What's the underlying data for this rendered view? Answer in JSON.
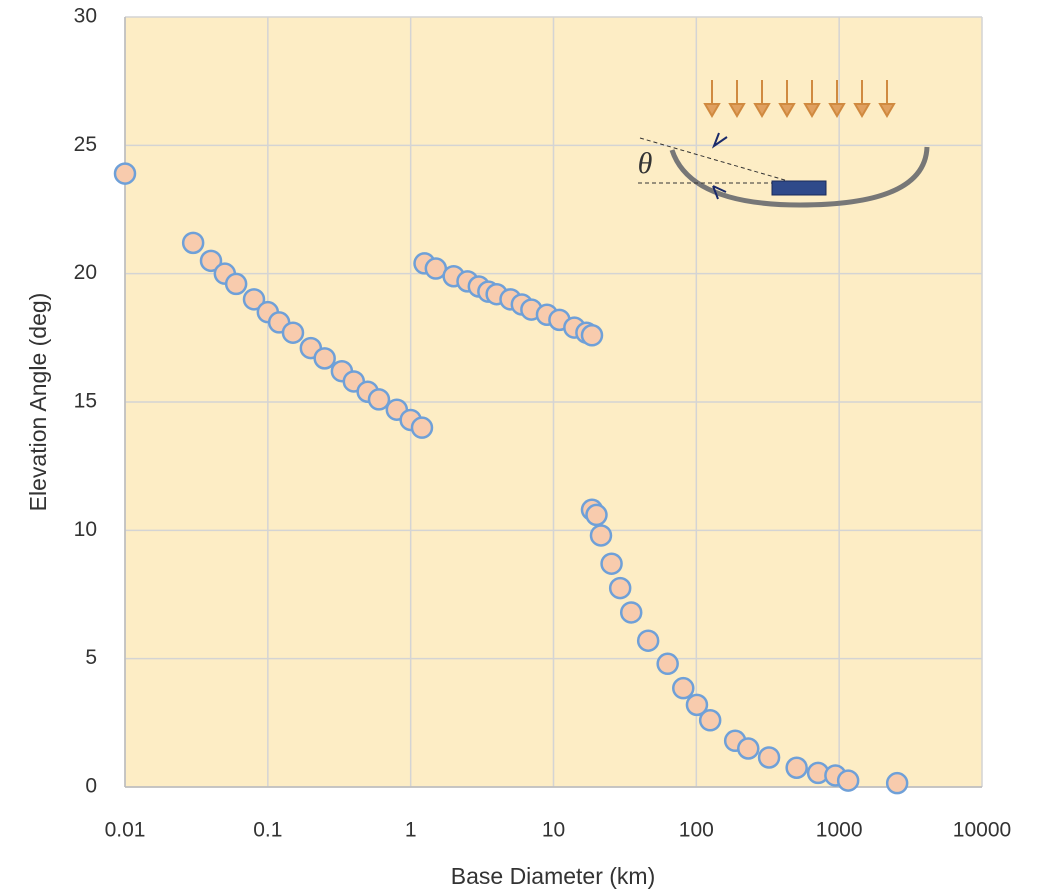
{
  "chart_data": {
    "type": "scatter",
    "xlabel": "Base Diameter (km)",
    "ylabel": "Elevation Angle (deg)",
    "annotation": "θ",
    "xscale": "log",
    "grid": true,
    "xlim": [
      0.01,
      10000
    ],
    "xticks": [
      0.01,
      0.1,
      1,
      10,
      100,
      1000,
      10000
    ],
    "ylim": [
      0,
      30
    ],
    "yticks": [
      0,
      5,
      10,
      15,
      20,
      25,
      30
    ],
    "background": "#fdedc5",
    "series": [
      {
        "color": "#f8cbad",
        "edgecolor": "#6fa0d8",
        "x": [
          0.01,
          0.03,
          0.04,
          0.05,
          0.06,
          0.08,
          0.1,
          0.12,
          0.15,
          0.2,
          0.25,
          0.33,
          0.4,
          0.5,
          0.6,
          0.8,
          1.0,
          1.2,
          1.25,
          1.5,
          2,
          2.5,
          3,
          3.5,
          4,
          5,
          6,
          7,
          9,
          11,
          14,
          17,
          18.6,
          18.6,
          20,
          21.5,
          25.5,
          29.3,
          35,
          46,
          63,
          81,
          101,
          125,
          187,
          231,
          323,
          504,
          712,
          941,
          1156,
          2547
        ],
        "values": [
          23.9,
          21.2,
          20.5,
          20.0,
          19.6,
          19.0,
          18.5,
          18.1,
          17.7,
          17.1,
          16.7,
          16.2,
          15.8,
          15.4,
          15.1,
          14.7,
          14.3,
          14.0,
          20.4,
          20.2,
          19.9,
          19.7,
          19.5,
          19.3,
          19.2,
          19.0,
          18.8,
          18.6,
          18.4,
          18.2,
          17.9,
          17.7,
          17.6,
          10.8,
          10.6,
          9.8,
          8.7,
          7.75,
          6.8,
          5.7,
          4.8,
          3.85,
          3.2,
          2.6,
          1.8,
          1.5,
          1.15,
          0.75,
          0.55,
          0.45,
          0.25,
          0.15
        ]
      }
    ]
  }
}
